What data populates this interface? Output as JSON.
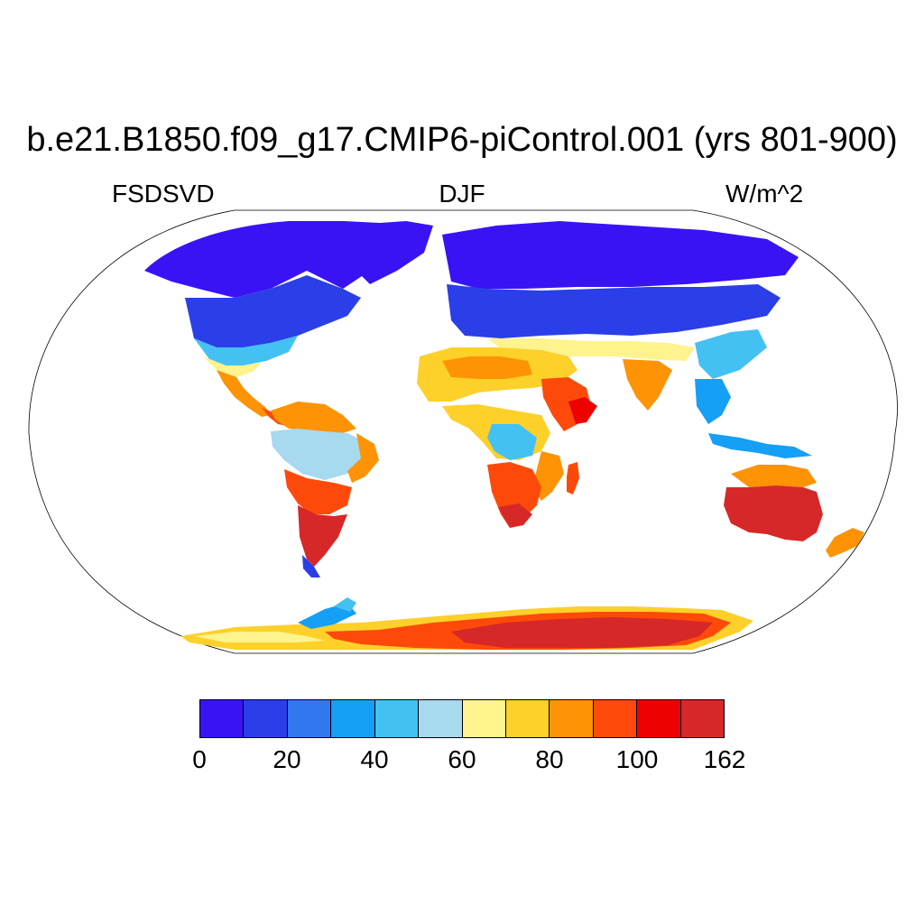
{
  "title": "b.e21.B1850.f09_g17.CMIP6-piControl.001 (yrs 801-900)",
  "subtitle_left": "FSDSVD",
  "subtitle_center": "DJF",
  "subtitle_right": "W/m^2",
  "colorbar": {
    "colors": [
      "#3a13f5",
      "#2a3fe8",
      "#3377ee",
      "#159ff5",
      "#44c1f3",
      "#a7d9ef",
      "#fef38c",
      "#fdd02a",
      "#fd9305",
      "#fd4a0a",
      "#ee0201",
      "#d62828"
    ],
    "tick_labels": [
      "0",
      "20",
      "40",
      "60",
      "80",
      "100",
      "162"
    ]
  }
}
